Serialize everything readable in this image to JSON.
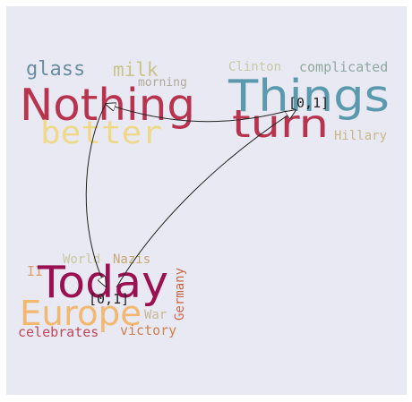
{
  "clusters": [
    {
      "id": "top-left",
      "words": [
        {
          "text": "glass",
          "color": "#6a8ea0"
        },
        {
          "text": "milk",
          "color": "#c8c48a"
        },
        {
          "text": "morning",
          "color": "#b0a898"
        },
        {
          "text": "Nothing",
          "color": "#b8334e"
        },
        {
          "text": "better",
          "color": "#f0d88a"
        }
      ]
    },
    {
      "id": "top-right",
      "label": "[0,1]",
      "words": [
        {
          "text": "Clinton",
          "color": "#c8c8a8"
        },
        {
          "text": "complicated",
          "color": "#8fa8a0"
        },
        {
          "text": "Things",
          "color": "#5b9aae"
        },
        {
          "text": "turn",
          "color": "#b8334e"
        },
        {
          "text": "Hillary",
          "color": "#c8b88a"
        }
      ]
    },
    {
      "id": "bottom-left",
      "label": "[0,1]",
      "words": [
        {
          "text": "World",
          "color": "#c8c8a0"
        },
        {
          "text": "Nazis",
          "color": "#c8a878"
        },
        {
          "text": "II",
          "color": "#d8a070"
        },
        {
          "text": "Today",
          "color": "#9a1050"
        },
        {
          "text": "Germany",
          "color": "#c86848"
        },
        {
          "text": "Europe",
          "color": "#f2b870"
        },
        {
          "text": "War",
          "color": "#c8b898"
        },
        {
          "text": "celebrates",
          "color": "#c04858"
        },
        {
          "text": "victory",
          "color": "#d08050"
        }
      ]
    }
  ],
  "edges": [
    {
      "from": "top-right",
      "to": "top-left"
    },
    {
      "from": "top-left",
      "to": "bottom-left"
    },
    {
      "from": "bottom-left",
      "to": "top-right"
    }
  ]
}
